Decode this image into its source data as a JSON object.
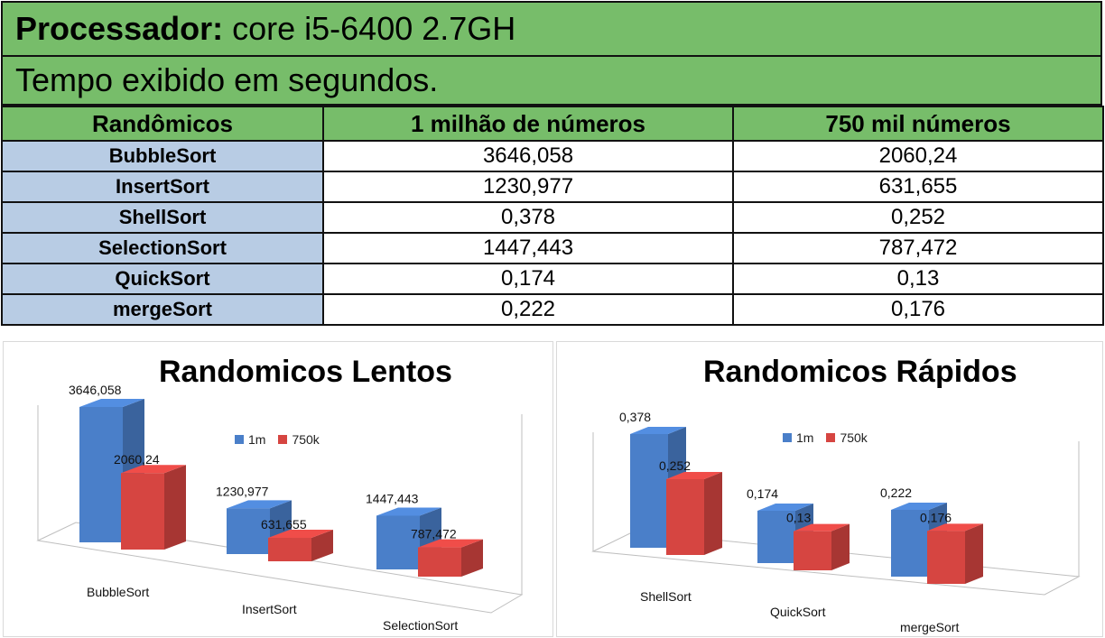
{
  "header": {
    "processor_label": "Processador:",
    "processor_value": "core i5-6400 2.7GH",
    "note": "Tempo exibido em segundos."
  },
  "table": {
    "columns": [
      "Randômicos",
      "1 milhão de números",
      "750 mil números"
    ],
    "rows": [
      [
        "BubbleSort",
        "3646,058",
        "2060,24"
      ],
      [
        "InsertSort",
        "1230,977",
        "631,655"
      ],
      [
        "ShellSort",
        "0,378",
        "0,252"
      ],
      [
        "SelectionSort",
        "1447,443",
        "787,472"
      ],
      [
        "QuickSort",
        "0,174",
        "0,13"
      ],
      [
        "mergeSort",
        "0,222",
        "0,176"
      ]
    ]
  },
  "colors": {
    "series_1m": "#4a7fc9",
    "series_750k": "#d64541",
    "header_green": "#77bd6a",
    "rowhead_blue": "#b8cce4"
  },
  "chart_data": [
    {
      "type": "bar",
      "title": "Randomicos Lentos",
      "categories": [
        "BubbleSort",
        "InsertSort",
        "SelectionSort"
      ],
      "series": [
        {
          "name": "1m",
          "values": [
            3646.058,
            1230.977,
            1447.443
          ],
          "labels": [
            "3646,058",
            "1230,977",
            "1447,443"
          ]
        },
        {
          "name": "750k",
          "values": [
            2060.24,
            631.655,
            787.472
          ],
          "labels": [
            "2060,24",
            "631,655",
            "787,472"
          ]
        }
      ],
      "legend": "top-center",
      "style": "3d-clustered"
    },
    {
      "type": "bar",
      "title": "Randomicos Rápidos",
      "categories": [
        "ShellSort",
        "QuickSort",
        "mergeSort"
      ],
      "series": [
        {
          "name": "1m",
          "values": [
            0.378,
            0.174,
            0.222
          ],
          "labels": [
            "0,378",
            "0,174",
            "0,222"
          ]
        },
        {
          "name": "750k",
          "values": [
            0.252,
            0.13,
            0.176
          ],
          "labels": [
            "0,252",
            "0,13",
            "0,176"
          ]
        }
      ],
      "legend": "top-center",
      "style": "3d-clustered"
    }
  ]
}
